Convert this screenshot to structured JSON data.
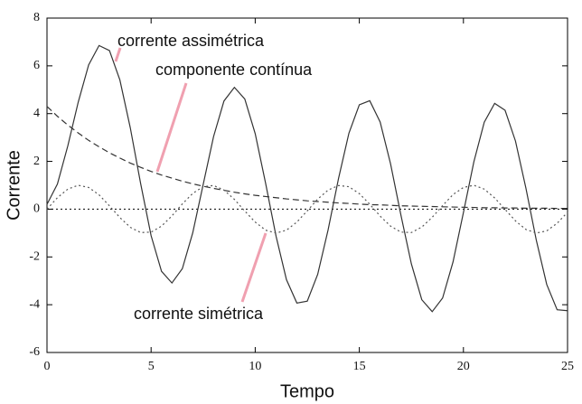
{
  "chart_data": {
    "type": "line",
    "x_label": "Tempo",
    "y_label": "Corrente",
    "xlim": [
      0,
      25
    ],
    "ylim": [
      -6,
      8
    ],
    "xticks": [
      0,
      5,
      10,
      15,
      20,
      25
    ],
    "yticks": [
      -6,
      -4,
      -2,
      0,
      2,
      4,
      6,
      8
    ],
    "x": [
      0,
      0.5,
      1,
      1.5,
      2,
      2.5,
      3,
      3.5,
      4,
      4.5,
      5,
      5.5,
      6,
      6.5,
      7,
      7.5,
      8,
      8.5,
      9,
      9.5,
      10,
      10.5,
      11,
      11.5,
      12,
      12.5,
      13,
      13.5,
      14,
      14.5,
      15,
      15.5,
      16,
      16.5,
      17,
      17.5,
      18,
      18.5,
      19,
      19.5,
      20,
      20.5,
      21,
      21.5,
      22,
      22.5,
      23,
      23.5,
      24,
      24.5,
      25
    ],
    "series": [
      {
        "name": "corrente assimétrica",
        "color": "#333333",
        "dash": "solid",
        "values": [
          0.2,
          1.05,
          2.65,
          4.48,
          6.04,
          6.85,
          6.64,
          5.41,
          3.41,
          1.06,
          -1.11,
          -2.6,
          -3.09,
          -2.49,
          -0.99,
          1.03,
          3.04,
          4.53,
          5.1,
          4.61,
          3.16,
          1.08,
          -1.13,
          -2.95,
          -3.93,
          -3.85,
          -2.73,
          -0.87,
          1.28,
          3.18,
          4.37,
          4.54,
          3.65,
          1.9,
          -0.26,
          -2.29,
          -3.79,
          -4.29,
          -3.72,
          -2.21,
          -0.14,
          1.98,
          3.64,
          4.43,
          4.14,
          2.85,
          0.88,
          -1.3,
          -3.15,
          -4.21,
          -4.25
        ]
      },
      {
        "name": "componente contínua",
        "color": "#333333",
        "dash": "dashed",
        "values": [
          4.3,
          3.89,
          3.52,
          3.19,
          2.88,
          2.61,
          2.36,
          2.14,
          1.93,
          1.75,
          1.58,
          1.43,
          1.3,
          1.17,
          1.06,
          0.96,
          0.87,
          0.79,
          0.71,
          0.64,
          0.58,
          0.53,
          0.48,
          0.43,
          0.39,
          0.35,
          0.32,
          0.29,
          0.26,
          0.24,
          0.21,
          0.19,
          0.18,
          0.16,
          0.14,
          0.13,
          0.12,
          0.11,
          0.1,
          0.09,
          0.08,
          0.07,
          0.06,
          0.06,
          0.05,
          0.05,
          0.04,
          0.04,
          0.04,
          0.03,
          0.03
        ]
      },
      {
        "name": "corrente simétrica",
        "color": "#555555",
        "dash": "dotted",
        "values": [
          0,
          0.48,
          0.84,
          1.0,
          0.91,
          0.6,
          0.14,
          -0.35,
          -0.76,
          -0.98,
          -0.96,
          -0.71,
          -0.28,
          0.22,
          0.66,
          0.94,
          0.99,
          0.8,
          0.41,
          -0.08,
          -0.54,
          -0.88,
          -1.0,
          -0.88,
          -0.54,
          -0.07,
          0.42,
          0.8,
          0.99,
          0.94,
          0.65,
          0.21,
          -0.29,
          -0.71,
          -0.96,
          -0.98,
          -0.75,
          -0.34,
          0.15,
          0.61,
          0.91,
          1.0,
          0.84,
          0.47,
          -0.01,
          -0.49,
          -0.85,
          -1.0,
          -0.91,
          -0.59,
          -0.13
        ]
      }
    ]
  }
}
